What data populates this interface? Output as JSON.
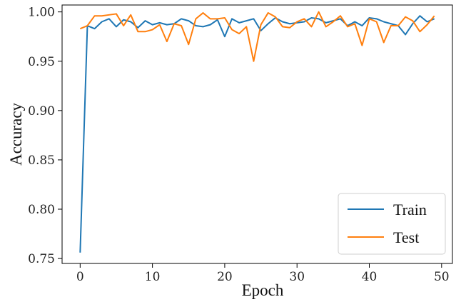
{
  "chart_data": {
    "type": "line",
    "xlabel": "Epoch",
    "ylabel": "Accuracy",
    "xlim": [
      -2.5,
      51.5
    ],
    "ylim": [
      0.745,
      1.007
    ],
    "xticks": [
      0,
      10,
      20,
      30,
      40,
      50
    ],
    "yticks": [
      0.75,
      0.8,
      0.85,
      0.9,
      0.95,
      1.0
    ],
    "xtick_labels": [
      "0",
      "10",
      "20",
      "30",
      "40",
      "50"
    ],
    "ytick_labels": [
      "0.75",
      "0.80",
      "0.85",
      "0.90",
      "0.95",
      "1.00"
    ],
    "grid": false,
    "legend_position": "bottom-right",
    "series": [
      {
        "name": "Train",
        "color": "#1f77b4",
        "x": [
          0,
          1,
          2,
          3,
          4,
          5,
          6,
          7,
          8,
          9,
          10,
          11,
          12,
          13,
          14,
          15,
          16,
          17,
          18,
          19,
          20,
          21,
          22,
          23,
          24,
          25,
          26,
          27,
          28,
          29,
          30,
          31,
          32,
          33,
          34,
          35,
          36,
          37,
          38,
          39,
          40,
          41,
          42,
          43,
          44,
          45,
          46,
          47,
          48,
          49
        ],
        "values": [
          0.756,
          0.986,
          0.983,
          0.99,
          0.993,
          0.985,
          0.992,
          0.99,
          0.984,
          0.991,
          0.987,
          0.989,
          0.987,
          0.988,
          0.993,
          0.991,
          0.986,
          0.985,
          0.987,
          0.992,
          0.975,
          0.993,
          0.989,
          0.991,
          0.993,
          0.981,
          0.988,
          0.994,
          0.99,
          0.988,
          0.989,
          0.99,
          0.994,
          0.993,
          0.989,
          0.991,
          0.993,
          0.986,
          0.99,
          0.986,
          0.994,
          0.993,
          0.99,
          0.988,
          0.986,
          0.977,
          0.988,
          0.996,
          0.99,
          0.993
        ]
      },
      {
        "name": "Test",
        "color": "#ff7f0e",
        "x": [
          0,
          1,
          2,
          3,
          4,
          5,
          6,
          7,
          8,
          9,
          10,
          11,
          12,
          13,
          14,
          15,
          16,
          17,
          18,
          19,
          20,
          21,
          22,
          23,
          24,
          25,
          26,
          27,
          28,
          29,
          30,
          31,
          32,
          33,
          34,
          35,
          36,
          37,
          38,
          39,
          40,
          41,
          42,
          43,
          44,
          45,
          46,
          47,
          48,
          49
        ],
        "values": [
          0.983,
          0.986,
          0.996,
          0.996,
          0.997,
          0.998,
          0.986,
          0.997,
          0.98,
          0.98,
          0.982,
          0.987,
          0.97,
          0.988,
          0.986,
          0.967,
          0.993,
          0.999,
          0.993,
          0.993,
          0.994,
          0.982,
          0.978,
          0.985,
          0.95,
          0.987,
          0.999,
          0.995,
          0.985,
          0.984,
          0.99,
          0.993,
          0.985,
          1.0,
          0.985,
          0.99,
          0.996,
          0.985,
          0.988,
          0.966,
          0.993,
          0.99,
          0.969,
          0.986,
          0.986,
          0.995,
          0.991,
          0.98,
          0.987,
          0.996
        ]
      }
    ]
  }
}
